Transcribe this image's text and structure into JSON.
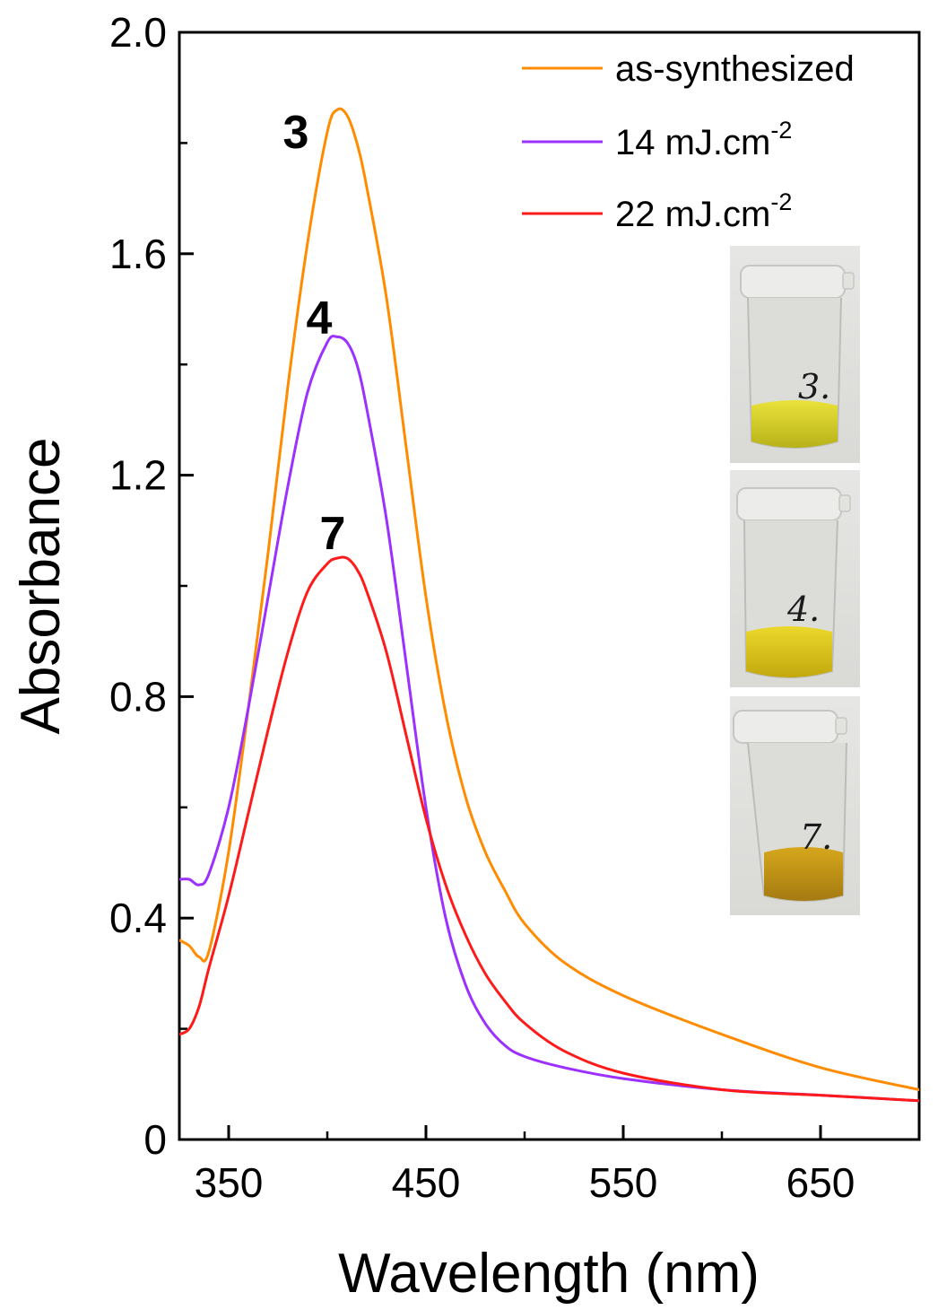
{
  "chart_data": {
    "type": "line",
    "xlabel": "Wavelength (nm)",
    "ylabel": "Absorbance",
    "xlim": [
      325,
      700
    ],
    "ylim": [
      0,
      2.0
    ],
    "xticks": [
      350,
      450,
      550,
      650
    ],
    "xtick_labels": [
      "350",
      "450",
      "550",
      "650"
    ],
    "yticks": [
      0,
      0.4,
      0.8,
      1.2,
      1.6,
      2.0
    ],
    "ytick_labels": [
      "0",
      "0.4",
      "0.8",
      "1.2",
      "1.6",
      "2.0"
    ],
    "grid": false,
    "legend_position": "top-right",
    "series": [
      {
        "name": "as-synthesized",
        "legend_main": "as-synthesized",
        "legend_sup": "",
        "color": "#FF8C00",
        "peak_label": "3",
        "x": [
          325,
          330,
          335,
          340,
          350,
          360,
          370,
          380,
          390,
          400,
          405,
          410,
          415,
          420,
          430,
          440,
          450,
          460,
          470,
          480,
          490,
          500,
          520,
          550,
          600,
          650,
          700
        ],
        "y": [
          0.36,
          0.35,
          0.33,
          0.34,
          0.52,
          0.78,
          1.06,
          1.36,
          1.62,
          1.82,
          1.86,
          1.85,
          1.8,
          1.72,
          1.52,
          1.25,
          0.98,
          0.77,
          0.62,
          0.52,
          0.45,
          0.39,
          0.32,
          0.26,
          0.19,
          0.13,
          0.09
        ]
      },
      {
        "name": "14 mJ.cm-2",
        "legend_main": "14 mJ.cm",
        "legend_sup": "-2",
        "color": "#9B30FF",
        "peak_label": "4",
        "x": [
          325,
          330,
          335,
          340,
          350,
          360,
          370,
          380,
          390,
          400,
          405,
          410,
          415,
          420,
          430,
          440,
          450,
          460,
          470,
          480,
          490,
          500,
          520,
          550,
          600,
          650,
          700
        ],
        "y": [
          0.47,
          0.47,
          0.46,
          0.48,
          0.6,
          0.78,
          0.98,
          1.18,
          1.35,
          1.44,
          1.45,
          1.44,
          1.4,
          1.32,
          1.12,
          0.86,
          0.6,
          0.4,
          0.28,
          0.21,
          0.17,
          0.15,
          0.13,
          0.11,
          0.09,
          0.08,
          0.07
        ]
      },
      {
        "name": "22 mJ.cm-2",
        "legend_main": "22 mJ.cm",
        "legend_sup": "-2",
        "color": "#FF1A1A",
        "peak_label": "7",
        "x": [
          325,
          330,
          335,
          340,
          350,
          360,
          370,
          380,
          390,
          400,
          405,
          410,
          415,
          420,
          430,
          440,
          450,
          460,
          470,
          480,
          490,
          500,
          520,
          550,
          600,
          650,
          700
        ],
        "y": [
          0.19,
          0.2,
          0.24,
          0.31,
          0.44,
          0.59,
          0.74,
          0.88,
          0.99,
          1.04,
          1.05,
          1.05,
          1.03,
          0.99,
          0.88,
          0.73,
          0.58,
          0.46,
          0.37,
          0.3,
          0.25,
          0.21,
          0.16,
          0.12,
          0.09,
          0.08,
          0.07
        ]
      }
    ]
  },
  "inset": {
    "vial_labels": [
      "3.",
      "4.",
      "7."
    ]
  }
}
